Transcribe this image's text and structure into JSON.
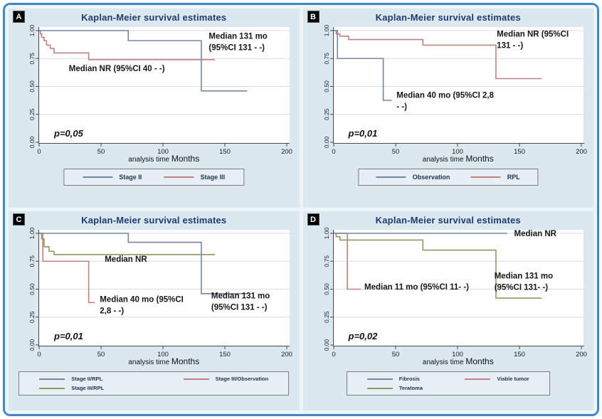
{
  "figure": {
    "border_color": "#4288c8",
    "frame_bg": "#eef5f8",
    "panel_bg": "#dce8ef",
    "plot_bg": "#ffffff",
    "grid_color": "#d9dee3",
    "axis_color": "#4a4a4a",
    "title_color": "#1f3c70",
    "xlabel_small": "analysis time",
    "xlabel_big": "Months"
  },
  "chart_data": [
    {
      "type": "line",
      "panel": "A",
      "title": "Kaplan-Meier survival estimates",
      "xlabel": "analysis time Months",
      "ylabel": "",
      "xlim": [
        0,
        200
      ],
      "ylim": [
        0,
        1.0
      ],
      "xticks": [
        0,
        50,
        100,
        150,
        200
      ],
      "yticks": [
        "0.00",
        "0.25",
        "0.50",
        "0.75",
        "1.00"
      ],
      "grid": true,
      "legend_position": "bottom",
      "p_value": "p=0,05",
      "series": [
        {
          "name": "Stage II",
          "color": "#7886a5",
          "points": [
            [
              0,
              1.0
            ],
            [
              72,
              0.91
            ],
            [
              131,
              0.46
            ],
            [
              168,
              0.46
            ]
          ]
        },
        {
          "name": "Stage III",
          "color": "#c08182",
          "points": [
            [
              0,
              1.0
            ],
            [
              1,
              0.97
            ],
            [
              2,
              0.94
            ],
            [
              4,
              0.91
            ],
            [
              6,
              0.87
            ],
            [
              9,
              0.84
            ],
            [
              12,
              0.8
            ],
            [
              40,
              0.74
            ],
            [
              142,
              0.74
            ]
          ]
        }
      ],
      "annotations": [
        {
          "text": "Median 131 mo\n(95%CI 131 - -)",
          "x": 137,
          "y": 0.89
        },
        {
          "text": "Median NR (95%CI 40 - -)",
          "x": 24,
          "y": 0.65
        }
      ],
      "legend": {
        "layout": "row",
        "width_pct": 62
      }
    },
    {
      "type": "line",
      "panel": "B",
      "title": "Kaplan-Meier survival estimates",
      "xlabel": "analysis time Months",
      "ylabel": "",
      "xlim": [
        0,
        200
      ],
      "ylim": [
        0,
        1.0
      ],
      "xticks": [
        0,
        50,
        100,
        150,
        200
      ],
      "yticks": [
        "0.00",
        "0.25",
        "0.50",
        "0.75",
        "1.00"
      ],
      "grid": true,
      "legend_position": "bottom",
      "p_value": "p=0,01",
      "series": [
        {
          "name": "Observation",
          "color": "#7886a5",
          "points": [
            [
              0,
              1.0
            ],
            [
              3,
              0.75
            ],
            [
              40,
              0.375
            ],
            [
              47,
              0.375
            ]
          ]
        },
        {
          "name": "RPL",
          "color": "#c08182",
          "points": [
            [
              0,
              1.0
            ],
            [
              2,
              0.97
            ],
            [
              5,
              0.95
            ],
            [
              12,
              0.92
            ],
            [
              72,
              0.87
            ],
            [
              131,
              0.57
            ],
            [
              168,
              0.57
            ]
          ]
        }
      ],
      "annotations": [
        {
          "text": "Median NR (95%CI\n131 - -)",
          "x": 132,
          "y": 0.91
        },
        {
          "text": "Median 40 mo (95%CI 2,8\n- -)",
          "x": 51,
          "y": 0.36
        }
      ],
      "legend": {
        "layout": "row",
        "width_pct": 62
      }
    },
    {
      "type": "line",
      "panel": "C",
      "title": "Kaplan-Meier survival estimates",
      "xlabel": "analysis time Months",
      "ylabel": "",
      "xlim": [
        0,
        200
      ],
      "ylim": [
        0,
        1.0
      ],
      "xticks": [
        0,
        50,
        100,
        150,
        200
      ],
      "yticks": [
        "0.00",
        "0.25",
        "0.50",
        "0.75",
        "1.00"
      ],
      "grid": true,
      "legend_position": "bottom",
      "p_value": "p=0,01",
      "series": [
        {
          "name": "Stage II/RPL",
          "color": "#7886a5",
          "points": [
            [
              0,
              1.0
            ],
            [
              72,
              0.92
            ],
            [
              131,
              0.46
            ],
            [
              168,
              0.46
            ]
          ]
        },
        {
          "name": "Stage III/RPL",
          "color": "#8e9a63",
          "points": [
            [
              0,
              1.0
            ],
            [
              2,
              0.95
            ],
            [
              4,
              0.88
            ],
            [
              8,
              0.84
            ],
            [
              12,
              0.81
            ],
            [
              142,
              0.81
            ]
          ]
        },
        {
          "name": "Stage III/Observation",
          "color": "#c08182",
          "points": [
            [
              0,
              1.0
            ],
            [
              3,
              0.75
            ],
            [
              40,
              0.38
            ],
            [
              45,
              0.38
            ]
          ]
        }
      ],
      "annotations": [
        {
          "text": "Median NR",
          "x": 53,
          "y": 0.76
        },
        {
          "text": "Median 40 mo (95%CI\n2,8 - -)",
          "x": 49,
          "y": 0.35
        },
        {
          "text": "Median 131 mo\n(95%CI 131 - -)",
          "x": 139,
          "y": 0.38
        }
      ],
      "legend": {
        "layout": "two-col",
        "width_pct": 93
      }
    },
    {
      "type": "line",
      "panel": "D",
      "title": "Kaplan-Meier survival estimates",
      "xlabel": "analysis time Months",
      "ylabel": "",
      "xlim": [
        0,
        200
      ],
      "ylim": [
        0,
        1.0
      ],
      "xticks": [
        0,
        50,
        100,
        150,
        200
      ],
      "yticks": [
        "0.00",
        "0.25",
        "0.50",
        "0.75",
        "1.00"
      ],
      "grid": true,
      "legend_position": "bottom",
      "p_value": "p=0,02",
      "series": [
        {
          "name": "Fibrosis",
          "color": "#7886a5",
          "points": [
            [
              0,
              1.0
            ],
            [
              140,
              1.0
            ]
          ]
        },
        {
          "name": "Teratoma",
          "color": "#8e9a63",
          "points": [
            [
              0,
              1.0
            ],
            [
              2,
              0.97
            ],
            [
              5,
              0.94
            ],
            [
              72,
              0.85
            ],
            [
              131,
              0.42
            ],
            [
              168,
              0.42
            ]
          ]
        },
        {
          "name": "Viable tumor",
          "color": "#c08182",
          "points": [
            [
              0,
              1.0
            ],
            [
              11,
              0.5
            ],
            [
              22,
              0.5
            ]
          ]
        }
      ],
      "annotations": [
        {
          "text": "Median NR",
          "x": 146,
          "y": 0.985
        },
        {
          "text": "Median 11 mo (95%CI 11- -)",
          "x": 25,
          "y": 0.51
        },
        {
          "text": "Median 131 mo\n(95%CI 131- -)",
          "x": 130,
          "y": 0.56
        }
      ],
      "legend": {
        "layout": "two-col",
        "width_pct": 70
      }
    }
  ]
}
